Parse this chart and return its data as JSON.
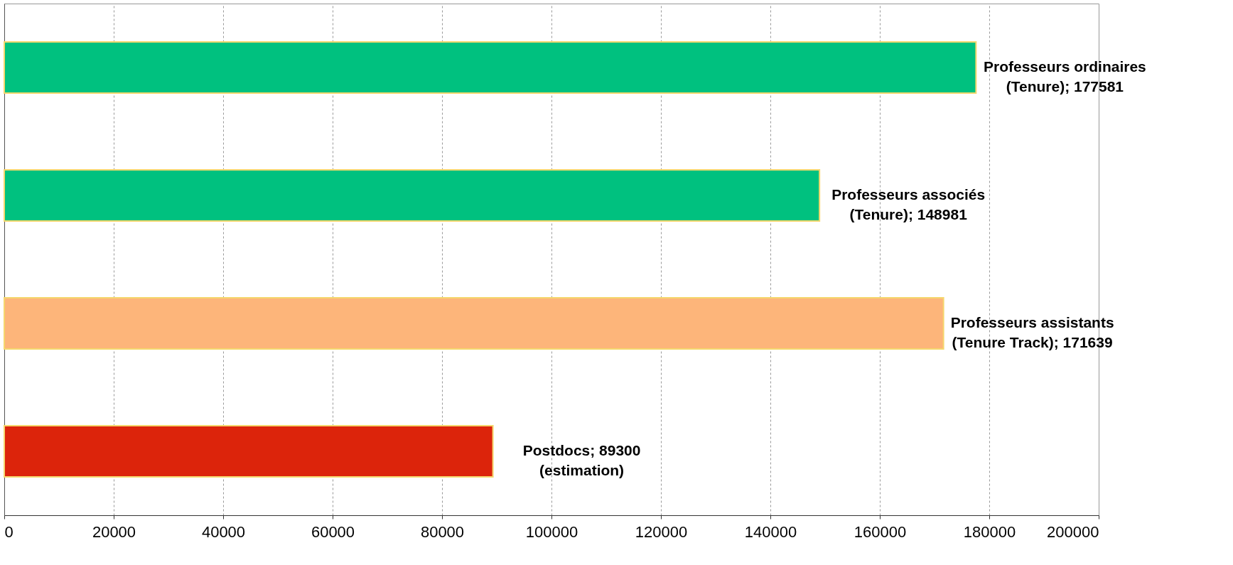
{
  "chart_data": {
    "type": "bar",
    "orientation": "horizontal",
    "categories": [
      null,
      null,
      null,
      null
    ],
    "values": [
      177581,
      148981,
      171639,
      89300
    ],
    "colors": [
      "#00c17f",
      "#00c17f",
      "#fdb57a",
      "#dc240b"
    ],
    "value_labels": [
      "Professeurs ordinaires\n(Tenure); 177581",
      "Professeurs associés\n(Tenure); 148981",
      "Professeurs assistants\n(Tenure Track); 171639",
      "Postdocs; 89300\n(estimation)"
    ],
    "xlim": [
      0,
      200000
    ],
    "xticks": [
      0,
      20000,
      40000,
      60000,
      80000,
      100000,
      120000,
      140000,
      160000,
      180000,
      200000
    ],
    "grid": "x"
  }
}
